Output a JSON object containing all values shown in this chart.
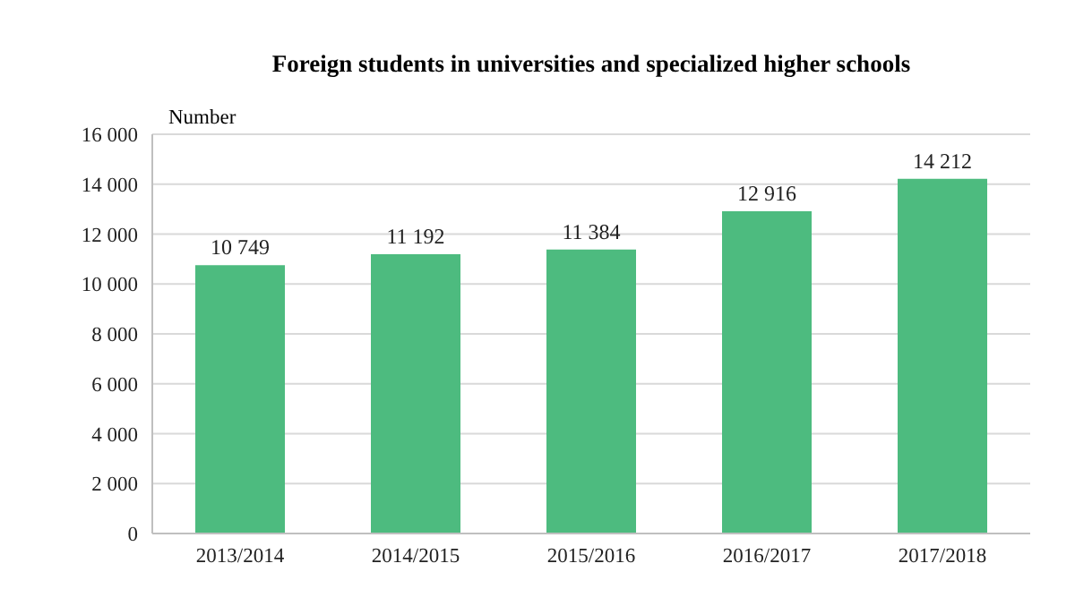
{
  "chart_data": {
    "type": "bar",
    "title": "Foreign students in universities and specialized higher schools",
    "ylabel": "Number",
    "categories": [
      "2013/2014",
      "2014/2015",
      "2015/2016",
      "2016/2017",
      "2017/2018"
    ],
    "values": [
      10749,
      11192,
      11384,
      12916,
      14212
    ],
    "value_labels": [
      "10 749",
      "11 192",
      "11 384",
      "12 916",
      "14 212"
    ],
    "color": "#4dbb7f",
    "ylim": [
      0,
      16000
    ],
    "yticks": [
      0,
      {
        "value": 2000,
        "label": "2 000"
      },
      {
        "value": 4000,
        "label": "4 000"
      },
      {
        "value": 6000,
        "label": "6 000"
      },
      {
        "value": 8000,
        "label": "8 000"
      },
      {
        "value": 10000,
        "label": "10 000"
      },
      {
        "value": 12000,
        "label": "12 000"
      },
      {
        "value": 14000,
        "label": "14 000"
      },
      {
        "value": 16000,
        "label": "16 000"
      }
    ],
    "grid": "y",
    "legend": false
  }
}
